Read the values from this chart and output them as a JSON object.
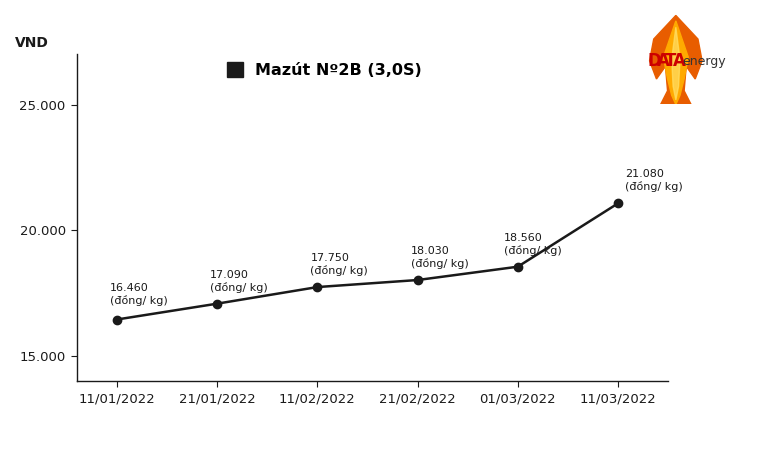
{
  "dates": [
    "11/01/2022",
    "21/01/2022",
    "11/02/2022",
    "21/02/2022",
    "01/03/2022",
    "11/03/2022"
  ],
  "values": [
    16460,
    17090,
    17750,
    18030,
    18560,
    21080
  ],
  "labels": [
    "16.460",
    "17.090",
    "17.750",
    "18.030",
    "18.560",
    "21.080"
  ],
  "unit_label": "(đồng/ kg)",
  "vnd_label": "VND",
  "ylim": [
    14000,
    27000
  ],
  "yticks": [
    15000,
    20000,
    25000
  ],
  "ytick_labels": [
    "15.000",
    "20.000",
    "25.000"
  ],
  "line_color": "#1a1a1a",
  "marker_color": "#1a1a1a",
  "legend_label": "Mazút Nº2B (3,0S)",
  "legend_marker_color": "#1a1a1a",
  "bg_color": "#ffffff",
  "annotation_fontsize": 8.0,
  "tick_fontsize": 9.5,
  "legend_fontsize": 11.5
}
